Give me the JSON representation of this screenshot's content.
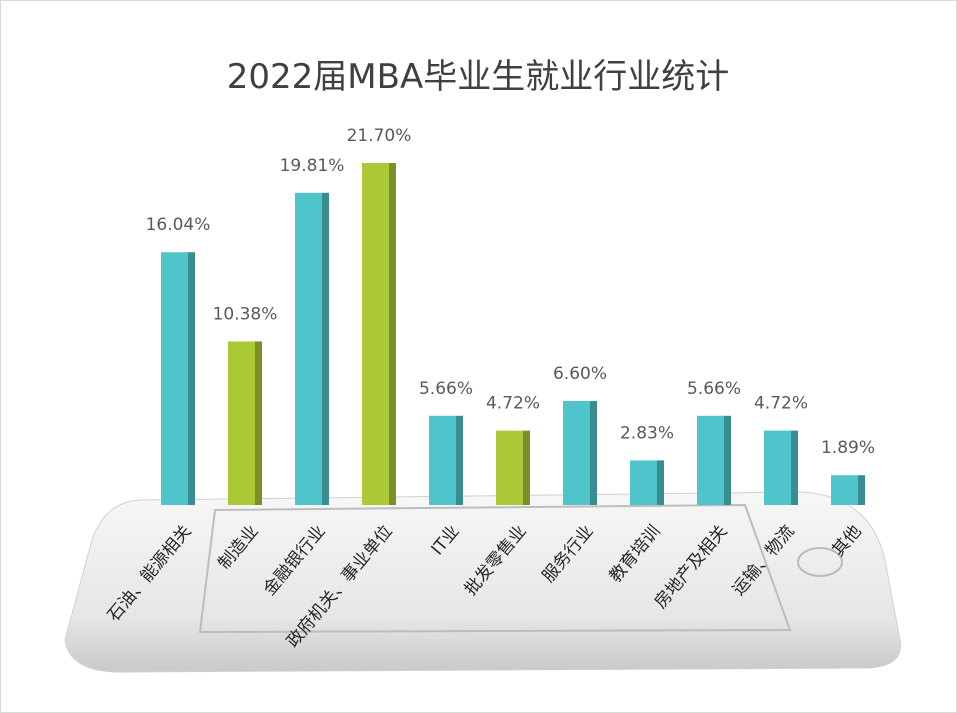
{
  "chart_data": {
    "type": "bar",
    "title": "2022届MBA毕业生就业行业统计",
    "categories": [
      "石油、能源相关",
      "制造业",
      "金融银行业",
      "政府机关、事业单位",
      "IT业",
      "批发零售业",
      "服务行业",
      "教育培训",
      "房地产及相关",
      "运输、物流",
      "其他"
    ],
    "values": [
      16.04,
      10.38,
      19.81,
      21.7,
      5.66,
      4.72,
      6.6,
      2.83,
      5.66,
      4.72,
      1.89
    ],
    "value_labels": [
      "16.04%",
      "10.38%",
      "19.81%",
      "21.70%",
      "5.66%",
      "4.72%",
      "6.60%",
      "2.83%",
      "5.66%",
      "4.72%",
      "1.89%"
    ],
    "colors": [
      "#4fc4ca",
      "#abc837",
      "#4fc4ca",
      "#abc837",
      "#4fc4ca",
      "#abc837",
      "#4fc4ca",
      "#4fc4ca",
      "#4fc4ca",
      "#4fc4ca",
      "#4fc4ca"
    ]
  }
}
